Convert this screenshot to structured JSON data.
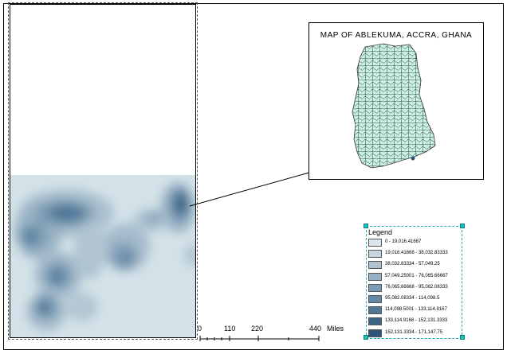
{
  "inset": {
    "title": "MAP OF ABLEKUMA, ACCRA, GHANA"
  },
  "legend": {
    "title": "Legend",
    "classes": [
      {
        "label": "0 - 19,016.41667",
        "color": "#dde6eb"
      },
      {
        "label": "19,016.41668 - 38,032.83333",
        "color": "#c9d6df"
      },
      {
        "label": "38,032.83334 - 57,049.25",
        "color": "#b1c4d1"
      },
      {
        "label": "57,049.25001 - 76,065.66667",
        "color": "#97b1c3"
      },
      {
        "label": "76,065.66668 - 95,082.08333",
        "color": "#7c9db5"
      },
      {
        "label": "95,082.08334 - 114,098.5",
        "color": "#6689a6"
      },
      {
        "label": "114,098.5001 - 133,114.9167",
        "color": "#4f7797"
      },
      {
        "label": "133,114.9168 - 152,131.3333",
        "color": "#3c6588"
      },
      {
        "label": "152,131.3334 - 171,147.75",
        "color": "#2c5579"
      }
    ]
  },
  "scale_bar": {
    "ticks": [
      "0",
      "110",
      "220",
      "440"
    ],
    "unit": "Miles"
  },
  "colors": {
    "density_background": "#d3e2e8",
    "inset_fill": "#c8f3e6",
    "inset_outline": "#333333"
  }
}
